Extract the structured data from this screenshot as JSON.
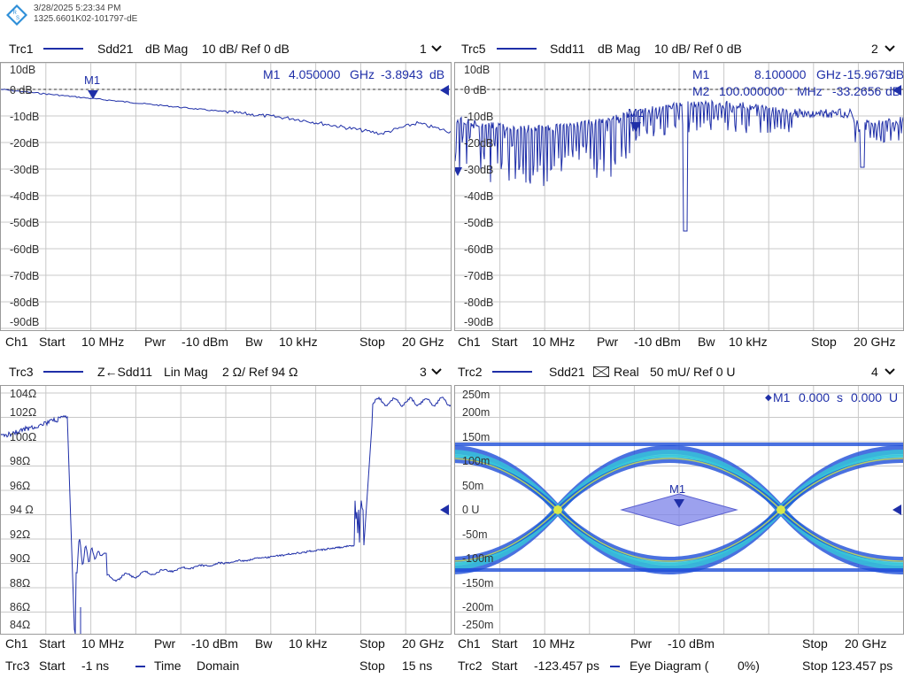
{
  "header": {
    "datetime": "3/28/2025 5:23:34 PM",
    "serial": "1325.6601K02-101797-dE",
    "logo_icon": "rohde-schwarz-logo"
  },
  "colors": {
    "trace": "#1f2fa8",
    "grid": "#c8c8c8",
    "eye_core": "#d8e84a",
    "eye_mid": "#35c7d8",
    "eye_outer": "#1d4ed8"
  },
  "panels": [
    {
      "trace": "Trc1",
      "param": "Sdd21",
      "format": "dB Mag",
      "scale": "10 dB/ Ref 0 dB",
      "number": "1",
      "yticks": [
        "10dB",
        "0 dB",
        "-10dB",
        "-20dB",
        "-30dB",
        "-40dB",
        "-50dB",
        "-60dB",
        "-70dB",
        "-80dB",
        "-90dB"
      ],
      "ref_label": "0 dB",
      "marker_label": "M1",
      "readouts": [
        [
          "M1",
          "4.050000",
          "GHz",
          "-3.8943",
          "dB"
        ]
      ],
      "status": [
        "Ch1",
        "Start",
        "10 MHz",
        "Pwr",
        "-10 dBm",
        "Bw",
        "10 kHz",
        "Stop",
        "20 GHz"
      ]
    },
    {
      "trace": "Trc5",
      "param": "Sdd11",
      "format": "dB Mag",
      "scale": "10 dB/ Ref 0 dB",
      "number": "2",
      "yticks": [
        "10dB",
        "0 dB",
        "-10dB",
        "-20dB",
        "-30dB",
        "-40dB",
        "-50dB",
        "-60dB",
        "-70dB",
        "-80dB",
        "-90dB"
      ],
      "ref_label": "0 dB",
      "marker_label": "M1",
      "readouts": [
        [
          "M1",
          "8.100000",
          "GHz",
          "-15.9679",
          "dB"
        ],
        [
          "M2",
          "100.000000",
          "MHz",
          "-33.2656",
          "dB"
        ]
      ],
      "status": [
        "Ch1",
        "Start",
        "10 MHz",
        "Pwr",
        "-10 dBm",
        "Bw",
        "10 kHz",
        "Stop",
        "20 GHz"
      ]
    },
    {
      "trace": "Trc3",
      "param": "Z←Sdd11",
      "format": "Lin Mag",
      "scale": "2 Ω/ Ref 94 Ω",
      "number": "3",
      "yticks": [
        "104Ω",
        "102Ω",
        "100Ω",
        "98Ω",
        "96Ω",
        "94 Ω",
        "92Ω",
        "90Ω",
        "88Ω",
        "86Ω",
        "84Ω"
      ],
      "ref_label": "94 Ω",
      "status": [
        "Ch1",
        "Start",
        "10 MHz",
        "Pwr",
        "-10 dBm",
        "Bw",
        "10 kHz",
        "Stop",
        "20 GHz"
      ],
      "status2": [
        "Trc3",
        "Start",
        "-1 ns",
        "Time",
        "Domain",
        "Stop",
        "15 ns"
      ]
    },
    {
      "trace": "Trc2",
      "param": "Sdd21",
      "format_icon": "eye-diagram-icon",
      "format": "Real",
      "scale": "50 mU/ Ref 0 U",
      "number": "4",
      "yticks": [
        "250m",
        "200m",
        "150m",
        "100m",
        "50m",
        "0 U",
        "-50m",
        "-100m",
        "-150m",
        "-200m",
        "-250m"
      ],
      "ref_label": "0 U",
      "marker_label": "M1",
      "readouts": [
        [
          "M1",
          "0.000",
          "s",
          "0.000",
          "U"
        ]
      ],
      "status": [
        "Ch1",
        "Start",
        "10 MHz",
        "Pwr",
        "-10 dBm",
        "Stop",
        "20 GHz"
      ],
      "status2": [
        "Trc2",
        "Start",
        "-123.457 ps",
        "Eye Diagram (",
        "0%)",
        "Stop",
        "123.457 ps"
      ]
    }
  ]
}
